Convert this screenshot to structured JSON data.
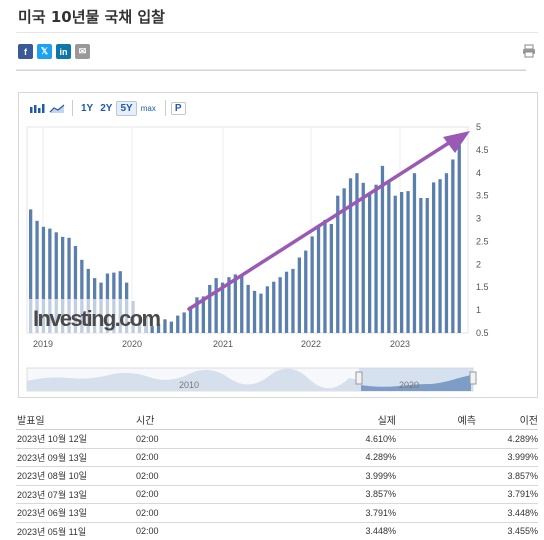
{
  "page": {
    "title": "미국 10년물 국채 입찰"
  },
  "share": {
    "facebook": "f",
    "twitter": "𝕏",
    "linkedin": "in",
    "email": "✉",
    "print_icon": "printer-icon"
  },
  "toolbar": {
    "bar_icon": "bar-chart-icon",
    "line_icon": "line-chart-icon",
    "ranges": [
      "1Y",
      "2Y",
      "5Y",
      "max"
    ],
    "selected_range": "5Y",
    "p_label": "P"
  },
  "chart_data": {
    "type": "bar",
    "title": "",
    "xlabel": "",
    "ylabel": "",
    "ylim": [
      0.5,
      5
    ],
    "y_ticks": [
      "0.5",
      "1",
      "1.5",
      "2",
      "2.5",
      "3",
      "3.5",
      "4",
      "4.5",
      "5"
    ],
    "x_ticks": [
      "2019",
      "2020",
      "2021",
      "2022",
      "2023"
    ],
    "values": [
      3.2,
      2.95,
      2.82,
      2.78,
      2.7,
      2.6,
      2.58,
      2.4,
      2.1,
      1.9,
      1.7,
      1.6,
      1.8,
      1.82,
      1.85,
      1.6,
      1.2,
      0.9,
      0.85,
      0.65,
      0.7,
      0.8,
      0.75,
      0.88,
      0.95,
      1.08,
      1.28,
      1.3,
      1.55,
      1.7,
      1.6,
      1.72,
      1.78,
      1.75,
      1.55,
      1.42,
      1.36,
      1.52,
      1.62,
      1.72,
      1.84,
      1.9,
      2.15,
      2.3,
      2.61,
      2.82,
      2.97,
      2.88,
      3.5,
      3.66,
      3.88,
      3.99,
      3.78,
      3.55,
      3.74,
      4.15,
      3.8,
      3.5,
      3.58,
      3.6,
      3.99,
      3.45,
      3.45,
      3.79,
      3.86,
      3.99,
      4.29,
      4.61
    ],
    "watermark": "Investing.com",
    "navigator_labels": [
      "2010",
      "2020"
    ]
  },
  "table": {
    "headers": {
      "date": "발표일",
      "time": "시간",
      "actual": "실제",
      "forecast": "예측",
      "previous": "이전"
    },
    "rows": [
      {
        "date": "2023년 10월 12일",
        "time": "02:00",
        "actual": "4.610%",
        "forecast": "",
        "previous": "4.289%"
      },
      {
        "date": "2023년 09월 13일",
        "time": "02:00",
        "actual": "4.289%",
        "forecast": "",
        "previous": "3.999%"
      },
      {
        "date": "2023년 08월 10일",
        "time": "02:00",
        "actual": "3.999%",
        "forecast": "",
        "previous": "3.857%"
      },
      {
        "date": "2023년 07월 13일",
        "time": "02:00",
        "actual": "3.857%",
        "forecast": "",
        "previous": "3.791%"
      },
      {
        "date": "2023년 06월 13일",
        "time": "02:00",
        "actual": "3.791%",
        "forecast": "",
        "previous": "3.448%"
      },
      {
        "date": "2023년 05월 11일",
        "time": "02:00",
        "actual": "3.448%",
        "forecast": "",
        "previous": "3.455%"
      }
    ]
  },
  "colors": {
    "bar": "#5b7fad",
    "bar_faded": "#b5c6dc",
    "trend_arrow": "#9b59b6",
    "link": "#1f5ba8"
  }
}
